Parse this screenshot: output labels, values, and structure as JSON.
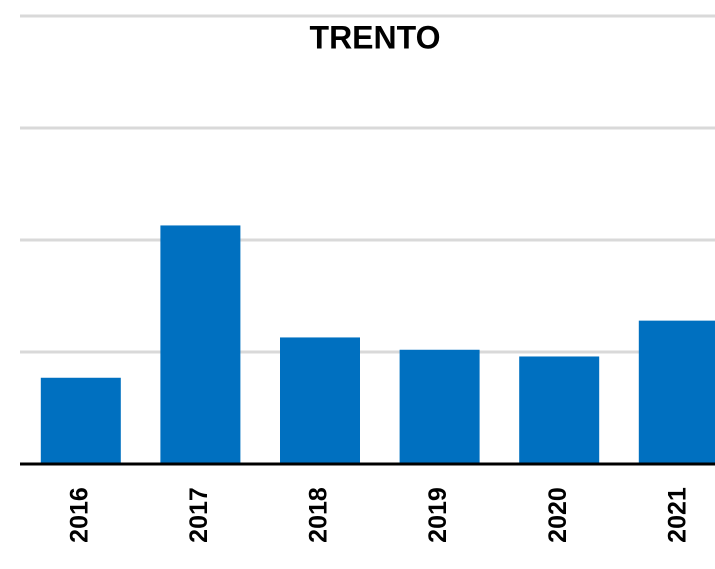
{
  "chart_data": {
    "type": "bar",
    "title": "TRENTO",
    "categories": [
      "2016",
      "2017",
      "2018",
      "2019",
      "2020",
      "2021"
    ],
    "values": [
      0.77,
      2.13,
      1.13,
      1.02,
      0.96,
      1.28
    ],
    "color": "#0070c0",
    "ylim": [
      0,
      4
    ],
    "yticks": [
      0,
      1,
      2,
      3,
      4
    ],
    "grid": true
  }
}
